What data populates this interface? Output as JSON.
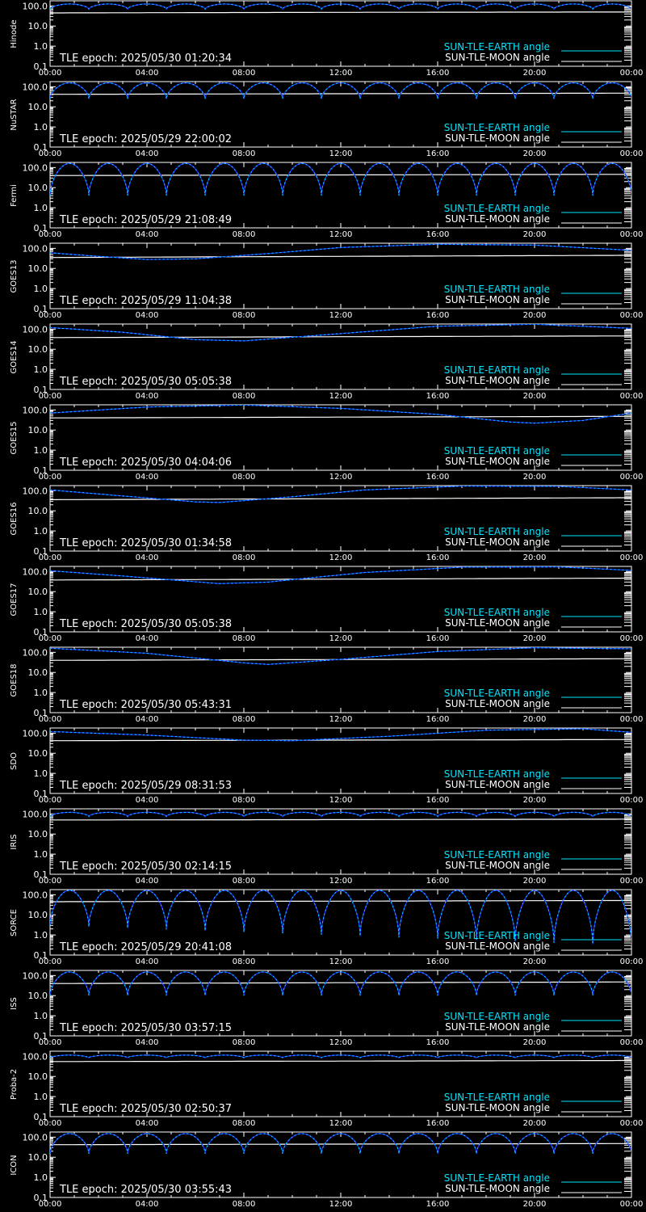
{
  "colors": {
    "earth": "#00e5ff",
    "moon": "#ffffff",
    "earth_dark": "#1a2cff",
    "axes": "#ffffff",
    "background": "#000000"
  },
  "common": {
    "y_ticks": [
      "100.0",
      "10.0",
      "1.0",
      "0.1"
    ],
    "x_ticks": [
      "00:00",
      "04:00",
      "08:00",
      "12:00",
      "16:00",
      "20:00",
      "00:00"
    ],
    "legend_earth": "SUN-TLE-EARTH angle",
    "legend_moon": "SUN-TLE-MOON angle"
  },
  "chart_data": [
    {
      "type": "line",
      "satellite": "Hinode",
      "epoch_label": "TLE epoch: 2025/05/30 01:20:34",
      "ylim": [
        0.1,
        180
      ],
      "yscale": "log",
      "xlim_hours": [
        0,
        24
      ],
      "earth": {
        "kind": "orbit",
        "periods": 15,
        "peak": 125,
        "min": 70
      },
      "moon": {
        "kind": "points",
        "points": [
          [
            0,
            45
          ],
          [
            12,
            48
          ],
          [
            24,
            50
          ]
        ]
      }
    },
    {
      "type": "line",
      "satellite": "NuSTAR",
      "epoch_label": "TLE epoch: 2025/05/29 22:00:02",
      "ylim": [
        0.1,
        180
      ],
      "yscale": "log",
      "xlim_hours": [
        0,
        24
      ],
      "earth": {
        "kind": "orbit",
        "periods": 15,
        "peak": 155,
        "min": 25
      },
      "moon": {
        "kind": "points",
        "points": [
          [
            0,
            42
          ],
          [
            12,
            45
          ],
          [
            24,
            48
          ]
        ]
      }
    },
    {
      "type": "line",
      "satellite": "Fermi",
      "epoch_label": "TLE epoch: 2025/05/29 21:08:49",
      "ylim": [
        0.1,
        180
      ],
      "yscale": "log",
      "xlim_hours": [
        0,
        24
      ],
      "earth": {
        "kind": "orbit",
        "periods": 15,
        "peak": 160,
        "min": 4
      },
      "moon": {
        "kind": "points",
        "points": [
          [
            0,
            40
          ],
          [
            12,
            43
          ],
          [
            24,
            46
          ]
        ]
      }
    },
    {
      "type": "line",
      "satellite": "GOES13",
      "epoch_label": "TLE epoch: 2025/05/29 11:04:38",
      "ylim": [
        0.1,
        180
      ],
      "yscale": "log",
      "xlim_hours": [
        0,
        24
      ],
      "earth": {
        "kind": "points",
        "points": [
          [
            0,
            60
          ],
          [
            2,
            40
          ],
          [
            4,
            28
          ],
          [
            6,
            30
          ],
          [
            9,
            55
          ],
          [
            12,
            110
          ],
          [
            16,
            160
          ],
          [
            20,
            145
          ],
          [
            24,
            80
          ]
        ]
      },
      "moon": {
        "kind": "points",
        "points": [
          [
            0,
            35
          ],
          [
            12,
            40
          ],
          [
            24,
            45
          ]
        ]
      }
    },
    {
      "type": "line",
      "satellite": "GOES14",
      "epoch_label": "TLE epoch: 2025/05/30 05:05:38",
      "ylim": [
        0.1,
        180
      ],
      "yscale": "log",
      "xlim_hours": [
        0,
        24
      ],
      "earth": {
        "kind": "points",
        "points": [
          [
            0,
            120
          ],
          [
            3,
            70
          ],
          [
            6,
            30
          ],
          [
            8,
            26
          ],
          [
            12,
            60
          ],
          [
            16,
            140
          ],
          [
            20,
            175
          ],
          [
            24,
            110
          ]
        ]
      },
      "moon": {
        "kind": "points",
        "points": [
          [
            0,
            38
          ],
          [
            12,
            42
          ],
          [
            24,
            46
          ]
        ]
      }
    },
    {
      "type": "line",
      "satellite": "GOES15",
      "epoch_label": "TLE epoch: 2025/05/30 04:04:06",
      "ylim": [
        0.1,
        180
      ],
      "yscale": "log",
      "xlim_hours": [
        0,
        24
      ],
      "earth": {
        "kind": "points",
        "points": [
          [
            0,
            70
          ],
          [
            4,
            140
          ],
          [
            8,
            175
          ],
          [
            12,
            120
          ],
          [
            16,
            60
          ],
          [
            19,
            25
          ],
          [
            20,
            22
          ],
          [
            22,
            30
          ],
          [
            24,
            70
          ]
        ]
      },
      "moon": {
        "kind": "points",
        "points": [
          [
            0,
            40
          ],
          [
            12,
            44
          ],
          [
            24,
            48
          ]
        ]
      }
    },
    {
      "type": "line",
      "satellite": "GOES16",
      "epoch_label": "TLE epoch: 2025/05/30 01:34:58",
      "ylim": [
        0.1,
        180
      ],
      "yscale": "log",
      "xlim_hours": [
        0,
        24
      ],
      "earth": {
        "kind": "points",
        "points": [
          [
            0,
            110
          ],
          [
            3,
            55
          ],
          [
            6,
            28
          ],
          [
            7,
            26
          ],
          [
            10,
            50
          ],
          [
            13,
            110
          ],
          [
            17,
            170
          ],
          [
            21,
            165
          ],
          [
            24,
            110
          ]
        ]
      },
      "moon": {
        "kind": "points",
        "points": [
          [
            0,
            36
          ],
          [
            12,
            40
          ],
          [
            24,
            45
          ]
        ]
      }
    },
    {
      "type": "line",
      "satellite": "GOES17",
      "epoch_label": "TLE epoch: 2025/05/30 05:05:38",
      "ylim": [
        0.1,
        180
      ],
      "yscale": "log",
      "xlim_hours": [
        0,
        24
      ],
      "earth": {
        "kind": "points",
        "points": [
          [
            0,
            110
          ],
          [
            3,
            60
          ],
          [
            7,
            25
          ],
          [
            9,
            30
          ],
          [
            13,
            90
          ],
          [
            17,
            165
          ],
          [
            21,
            170
          ],
          [
            24,
            115
          ]
        ]
      },
      "moon": {
        "kind": "points",
        "points": [
          [
            0,
            38
          ],
          [
            12,
            42
          ],
          [
            24,
            47
          ]
        ]
      }
    },
    {
      "type": "line",
      "satellite": "GOES18",
      "epoch_label": "TLE epoch: 2025/05/30 05:43:31",
      "ylim": [
        0.1,
        180
      ],
      "yscale": "log",
      "xlim_hours": [
        0,
        24
      ],
      "earth": {
        "kind": "points",
        "points": [
          [
            0,
            160
          ],
          [
            4,
            90
          ],
          [
            8,
            30
          ],
          [
            9,
            25
          ],
          [
            12,
            45
          ],
          [
            16,
            110
          ],
          [
            20,
            170
          ],
          [
            24,
            150
          ]
        ]
      },
      "moon": {
        "kind": "points",
        "points": [
          [
            0,
            40
          ],
          [
            12,
            44
          ],
          [
            24,
            48
          ]
        ]
      }
    },
    {
      "type": "line",
      "satellite": "SDO",
      "epoch_label": "TLE epoch: 2025/05/29 08:31:53",
      "ylim": [
        0.1,
        180
      ],
      "yscale": "log",
      "xlim_hours": [
        0,
        24
      ],
      "earth": {
        "kind": "points",
        "points": [
          [
            0,
            120
          ],
          [
            4,
            80
          ],
          [
            8,
            45
          ],
          [
            10,
            42
          ],
          [
            14,
            70
          ],
          [
            18,
            140
          ],
          [
            22,
            165
          ],
          [
            24,
            110
          ]
        ]
      },
      "moon": {
        "kind": "points",
        "points": [
          [
            0,
            42
          ],
          [
            12,
            45
          ],
          [
            24,
            48
          ]
        ]
      }
    },
    {
      "type": "line",
      "satellite": "IRIS",
      "epoch_label": "TLE epoch: 2025/05/30 02:14:15",
      "ylim": [
        0.1,
        180
      ],
      "yscale": "log",
      "xlim_hours": [
        0,
        24
      ],
      "earth": {
        "kind": "orbit",
        "periods": 15,
        "peak": 120,
        "min": 75
      },
      "moon": {
        "kind": "points",
        "points": [
          [
            0,
            50
          ],
          [
            12,
            52
          ],
          [
            24,
            55
          ]
        ]
      }
    },
    {
      "type": "line",
      "satellite": "SORCE",
      "epoch_label": "TLE epoch: 2025/05/29 20:41:08",
      "ylim": [
        0.1,
        180
      ],
      "yscale": "log",
      "xlim_hours": [
        0,
        24
      ],
      "earth": {
        "kind": "orbit",
        "periods": 15,
        "peak": 165,
        "min": 3,
        "min_end": 0.3
      },
      "moon": {
        "kind": "points",
        "points": [
          [
            0,
            45
          ],
          [
            12,
            48
          ],
          [
            24,
            52
          ]
        ]
      }
    },
    {
      "type": "line",
      "satellite": "ISS",
      "epoch_label": "TLE epoch: 2025/05/30 03:57:15",
      "ylim": [
        0.1,
        180
      ],
      "yscale": "log",
      "xlim_hours": [
        0,
        24
      ],
      "earth": {
        "kind": "orbit",
        "periods": 15,
        "peak": 150,
        "min": 10
      },
      "moon": {
        "kind": "points",
        "points": [
          [
            0,
            40
          ],
          [
            12,
            44
          ],
          [
            24,
            48
          ]
        ]
      }
    },
    {
      "type": "line",
      "satellite": "Proba-2",
      "epoch_label": "TLE epoch: 2025/05/30 02:50:37",
      "ylim": [
        0.1,
        180
      ],
      "yscale": "log",
      "xlim_hours": [
        0,
        24
      ],
      "earth": {
        "kind": "orbit",
        "periods": 15,
        "peak": 115,
        "min": 85
      },
      "moon": {
        "kind": "points",
        "points": [
          [
            0,
            55
          ],
          [
            12,
            58
          ],
          [
            24,
            62
          ]
        ]
      }
    },
    {
      "type": "line",
      "satellite": "ICON",
      "epoch_label": "TLE epoch: 2025/05/30 03:55:43",
      "ylim": [
        0.1,
        180
      ],
      "yscale": "log",
      "xlim_hours": [
        0,
        24
      ],
      "earth": {
        "kind": "orbit",
        "periods": 15,
        "peak": 150,
        "min": 15
      },
      "moon": {
        "kind": "points",
        "points": [
          [
            0,
            42
          ],
          [
            12,
            45
          ],
          [
            24,
            48
          ]
        ]
      }
    }
  ]
}
